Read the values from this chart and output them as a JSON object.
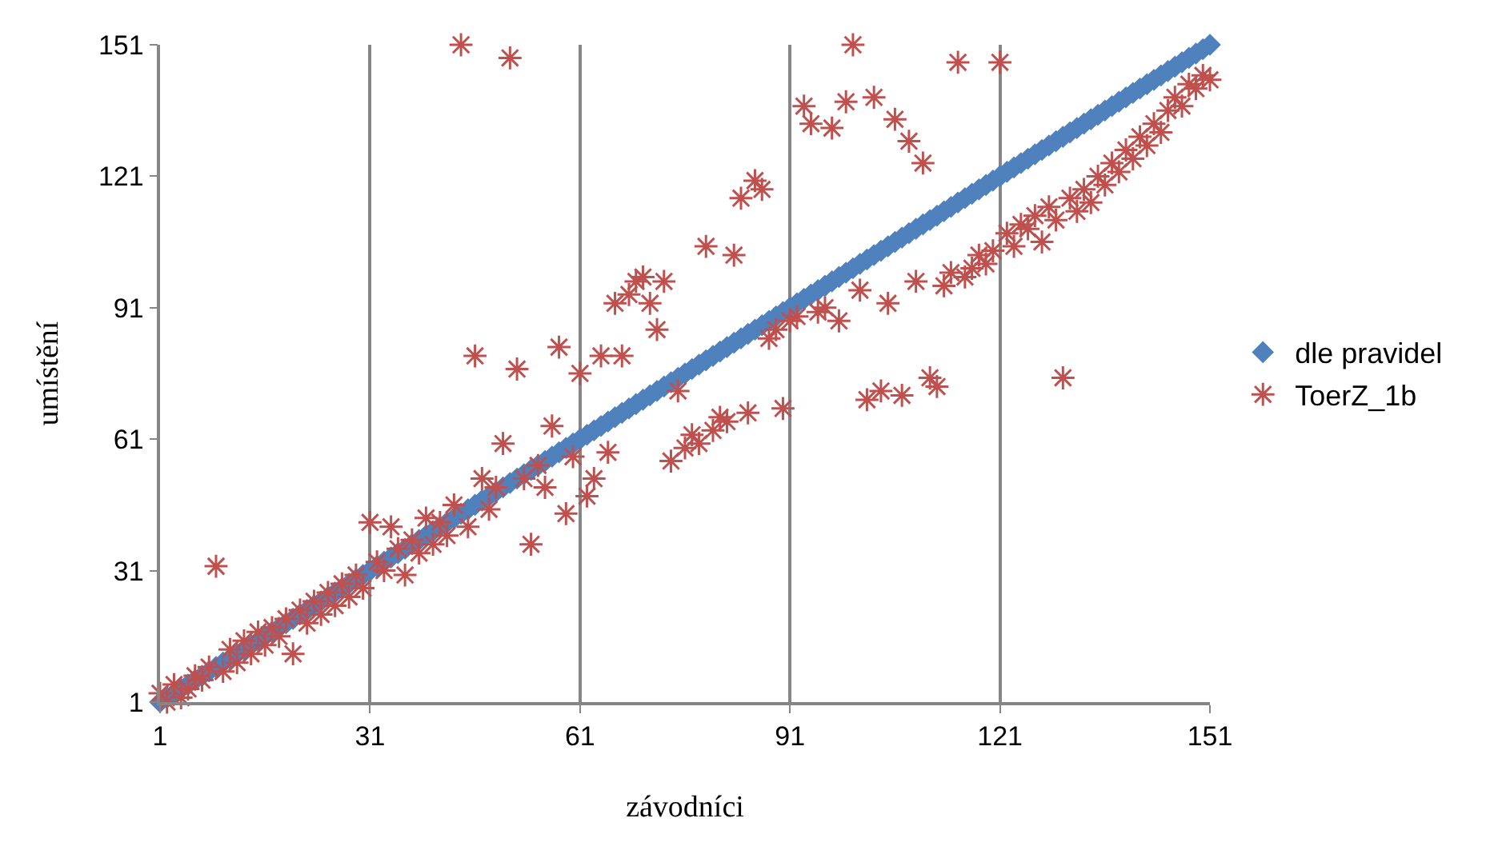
{
  "chart_data": {
    "type": "scatter",
    "xlabel": "závodníci",
    "ylabel": "umístění",
    "xlim": [
      1,
      151
    ],
    "xticks": [
      1,
      31,
      61,
      91,
      121,
      151
    ],
    "ylim": [
      1,
      151
    ],
    "yticks": [
      1,
      31,
      61,
      91,
      121,
      151
    ],
    "grid": "x",
    "legend": "right",
    "series": [
      {
        "name": "dle pravidel",
        "color": "#4f81bd",
        "marker": "diamond",
        "x": [
          1,
          2,
          3,
          4,
          5,
          6,
          7,
          8,
          9,
          10,
          11,
          12,
          13,
          14,
          15,
          16,
          17,
          18,
          19,
          20,
          21,
          22,
          23,
          24,
          25,
          26,
          27,
          28,
          29,
          30,
          31,
          32,
          33,
          34,
          35,
          36,
          37,
          38,
          39,
          40,
          41,
          42,
          43,
          44,
          45,
          46,
          47,
          48,
          49,
          50,
          51,
          52,
          53,
          54,
          55,
          56,
          57,
          58,
          59,
          60,
          61,
          62,
          63,
          64,
          65,
          66,
          67,
          68,
          69,
          70,
          71,
          72,
          73,
          74,
          75,
          76,
          77,
          78,
          79,
          80,
          81,
          82,
          83,
          84,
          85,
          86,
          87,
          88,
          89,
          90,
          91,
          92,
          93,
          94,
          95,
          96,
          97,
          98,
          99,
          100,
          101,
          102,
          103,
          104,
          105,
          106,
          107,
          108,
          109,
          110,
          111,
          112,
          113,
          114,
          115,
          116,
          117,
          118,
          119,
          120,
          121,
          122,
          123,
          124,
          125,
          126,
          127,
          128,
          129,
          130,
          131,
          132,
          133,
          134,
          135,
          136,
          137,
          138,
          139,
          140,
          141,
          142,
          143,
          144,
          145,
          146,
          147,
          148,
          149,
          150,
          151
        ],
        "values": [
          1,
          2,
          3,
          4,
          5,
          6,
          7,
          8,
          9,
          10,
          11,
          12,
          13,
          14,
          15,
          16,
          17,
          18,
          19,
          20,
          21,
          22,
          23,
          24,
          25,
          26,
          27,
          28,
          29,
          30,
          31,
          32,
          33,
          34,
          35,
          36,
          37,
          38,
          39,
          40,
          41,
          42,
          43,
          44,
          45,
          46,
          47,
          48,
          49,
          50,
          51,
          52,
          53,
          54,
          55,
          56,
          57,
          58,
          59,
          60,
          61,
          62,
          63,
          64,
          65,
          66,
          67,
          68,
          69,
          70,
          71,
          72,
          73,
          74,
          75,
          76,
          77,
          78,
          79,
          80,
          81,
          82,
          83,
          84,
          85,
          86,
          87,
          88,
          89,
          90,
          91,
          92,
          93,
          94,
          95,
          96,
          97,
          98,
          99,
          100,
          101,
          102,
          103,
          104,
          105,
          106,
          107,
          108,
          109,
          110,
          111,
          112,
          113,
          114,
          115,
          116,
          117,
          118,
          119,
          120,
          121,
          122,
          123,
          124,
          125,
          126,
          127,
          128,
          129,
          130,
          131,
          132,
          133,
          134,
          135,
          136,
          137,
          138,
          139,
          140,
          141,
          142,
          143,
          144,
          145,
          146,
          147,
          148,
          149,
          150,
          151
        ]
      },
      {
        "name": "ToerZ_1b",
        "color": "#c0504d",
        "marker": "cross",
        "x": [
          1,
          2,
          3,
          4,
          5,
          6,
          7,
          8,
          9,
          10,
          11,
          12,
          13,
          14,
          15,
          16,
          17,
          18,
          19,
          20,
          21,
          22,
          23,
          24,
          25,
          26,
          27,
          28,
          29,
          30,
          31,
          32,
          33,
          34,
          35,
          36,
          37,
          38,
          39,
          40,
          41,
          42,
          43,
          44,
          45,
          46,
          47,
          48,
          49,
          50,
          51,
          52,
          53,
          54,
          55,
          56,
          57,
          58,
          59,
          60,
          61,
          62,
          63,
          64,
          65,
          66,
          67,
          68,
          69,
          70,
          71,
          72,
          73,
          74,
          75,
          76,
          77,
          78,
          79,
          80,
          81,
          82,
          83,
          84,
          85,
          86,
          87,
          88,
          89,
          90,
          91,
          92,
          93,
          94,
          95,
          96,
          97,
          98,
          99,
          100,
          101,
          102,
          103,
          104,
          105,
          106,
          107,
          108,
          109,
          110,
          111,
          112,
          113,
          114,
          115,
          116,
          117,
          118,
          119,
          120,
          121,
          122,
          123,
          124,
          125,
          126,
          127,
          128,
          129,
          130,
          131,
          132,
          133,
          134,
          135,
          136,
          137,
          138,
          139,
          140,
          141,
          142,
          143,
          144,
          145,
          146,
          147,
          148,
          149,
          150,
          151
        ],
        "values": [
          3,
          1,
          5,
          2,
          4,
          7,
          6,
          9,
          32,
          8,
          13,
          10,
          15,
          12,
          17,
          14,
          18,
          16,
          20,
          12,
          22,
          19,
          24,
          21,
          26,
          23,
          28,
          25,
          30,
          27,
          42,
          33,
          31,
          41,
          36,
          30,
          38,
          35,
          43,
          37,
          42,
          39,
          46,
          151,
          41,
          80,
          52,
          45,
          50,
          60,
          148,
          77,
          52,
          37,
          55,
          50,
          64,
          82,
          44,
          57,
          76,
          48,
          52,
          80,
          58,
          92,
          80,
          94,
          97,
          98,
          92,
          86,
          97,
          56,
          72,
          59,
          62,
          60,
          105,
          63,
          66,
          65,
          103,
          116,
          67,
          120,
          118,
          84,
          86,
          68,
          88,
          89,
          137,
          133,
          90,
          91,
          132,
          88,
          138,
          151,
          95,
          70,
          139,
          72,
          92,
          134,
          71,
          129,
          97,
          124,
          75,
          73,
          96,
          99,
          147,
          98,
          100,
          103,
          101,
          104,
          147,
          108,
          105,
          110,
          109,
          112,
          106,
          114,
          111,
          75,
          116,
          113,
          118,
          115,
          121,
          119,
          124,
          122,
          127,
          125,
          130,
          128,
          133,
          131,
          136,
          139,
          137,
          142,
          141,
          144,
          143
        ]
      }
    ]
  }
}
